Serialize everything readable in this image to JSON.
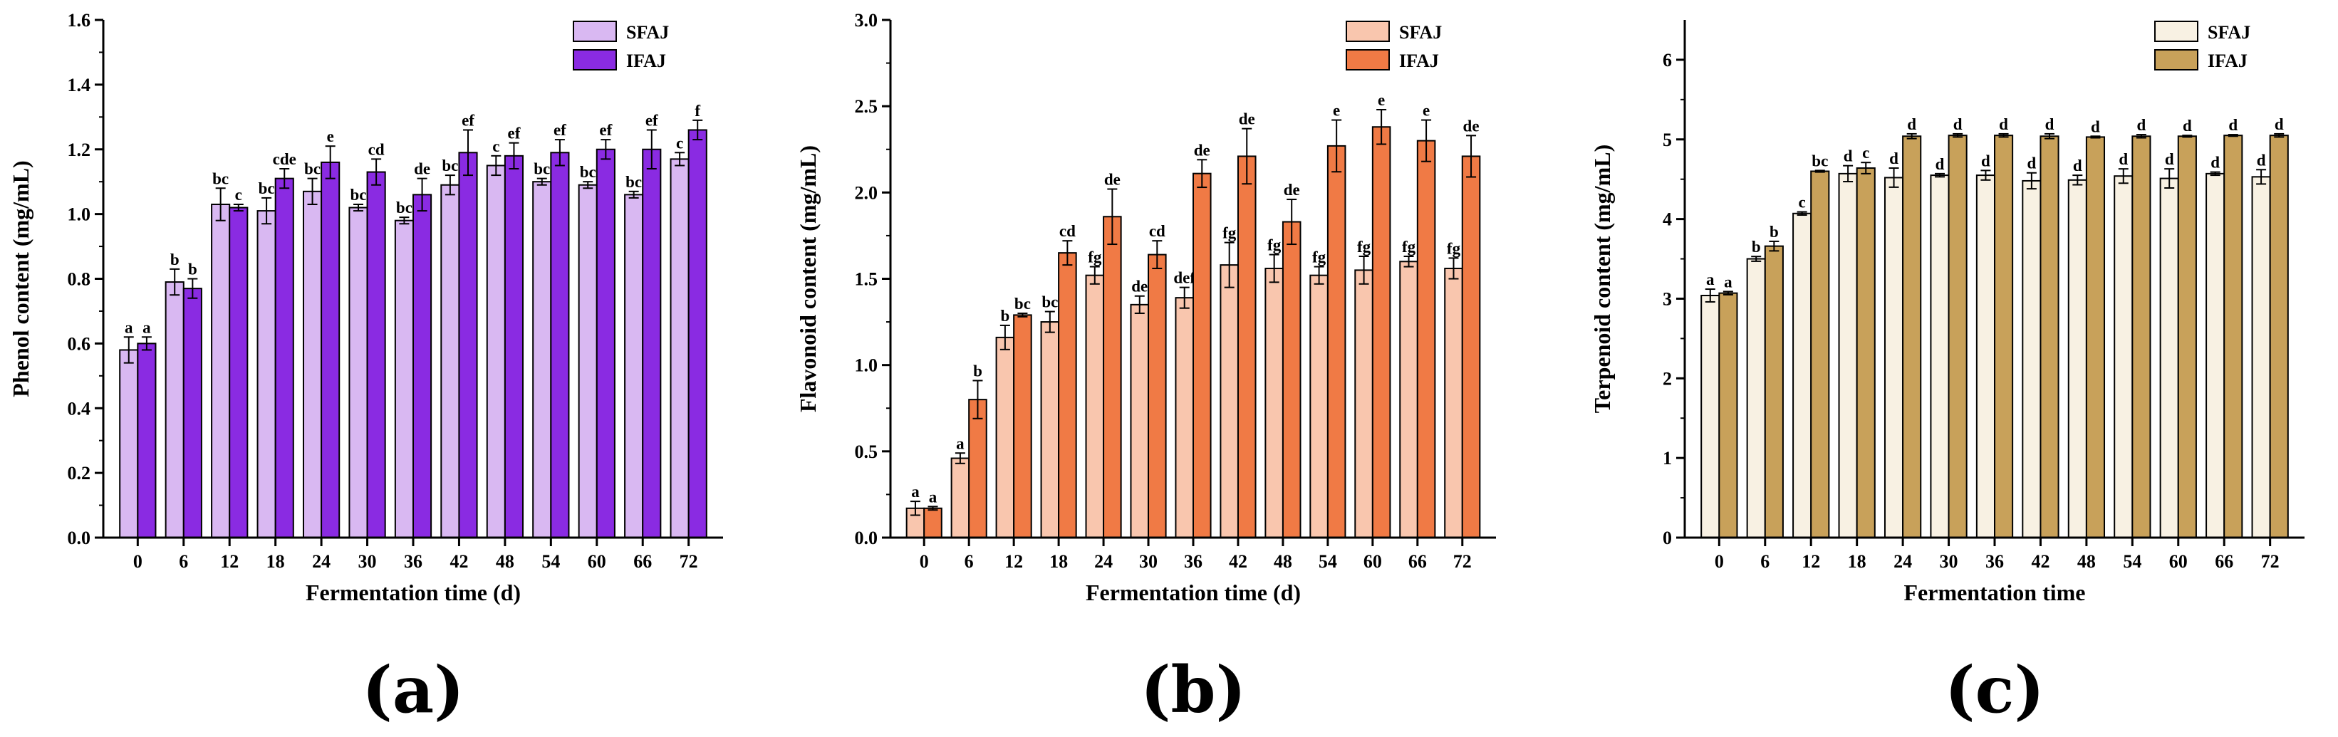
{
  "chart_data": [
    {
      "type": "bar",
      "panel_label": "(a)",
      "categories": [
        "0",
        "6",
        "12",
        "18",
        "24",
        "30",
        "36",
        "42",
        "48",
        "54",
        "60",
        "66",
        "72"
      ],
      "xlabel": "Fermentation time (d)",
      "ylabel": "Phenol content (mg/mL)",
      "ylim": [
        0,
        1.6
      ],
      "yticks": [
        "0.0",
        "0.2",
        "0.4",
        "0.6",
        "0.8",
        "1.0",
        "1.2",
        "1.4",
        "1.6"
      ],
      "legend_position": "top-right",
      "series": [
        {
          "name": "SFAJ",
          "color": "#D9B8F2",
          "values": [
            0.58,
            0.79,
            1.03,
            1.01,
            1.07,
            1.02,
            0.98,
            1.09,
            1.15,
            1.1,
            1.09,
            1.06,
            1.17
          ],
          "errors": [
            0.04,
            0.04,
            0.05,
            0.04,
            0.04,
            0.01,
            0.01,
            0.03,
            0.03,
            0.01,
            0.01,
            0.01,
            0.02
          ],
          "labels": [
            "a",
            "b",
            "bc",
            "bc",
            "bc",
            "bc",
            "bc",
            "bc",
            "c",
            "bc",
            "bc",
            "bc",
            "c"
          ]
        },
        {
          "name": "IFAJ",
          "color": "#8A2BE2",
          "values": [
            0.6,
            0.77,
            1.02,
            1.11,
            1.16,
            1.13,
            1.06,
            1.19,
            1.18,
            1.19,
            1.2,
            1.2,
            1.26
          ],
          "errors": [
            0.02,
            0.03,
            0.01,
            0.03,
            0.05,
            0.04,
            0.05,
            0.07,
            0.04,
            0.04,
            0.03,
            0.06,
            0.03
          ],
          "labels": [
            "a",
            "b",
            "c",
            "cde",
            "e",
            "cd",
            "de",
            "ef",
            "ef",
            "ef",
            "ef",
            "ef",
            "f"
          ]
        }
      ]
    },
    {
      "type": "bar",
      "panel_label": "(b)",
      "categories": [
        "0",
        "6",
        "12",
        "18",
        "24",
        "30",
        "36",
        "42",
        "48",
        "54",
        "60",
        "66",
        "72"
      ],
      "xlabel": "Fermentation time (d)",
      "ylabel": "Flavonoid content (mg/mL)",
      "ylim": [
        0,
        3.0
      ],
      "yticks": [
        "0.0",
        "0.5",
        "1.0",
        "1.5",
        "2.0",
        "2.5",
        "3.0"
      ],
      "legend_position": "top-right",
      "series": [
        {
          "name": "SFAJ",
          "color": "#F9C6AE",
          "values": [
            0.17,
            0.46,
            1.16,
            1.25,
            1.52,
            1.35,
            1.39,
            1.58,
            1.56,
            1.52,
            1.55,
            1.6,
            1.56
          ],
          "errors": [
            0.04,
            0.03,
            0.07,
            0.06,
            0.05,
            0.05,
            0.06,
            0.13,
            0.08,
            0.05,
            0.08,
            0.03,
            0.06
          ],
          "labels": [
            "a",
            "a",
            "b",
            "bc",
            "fg",
            "de",
            "def",
            "fg",
            "fg",
            "fg",
            "fg",
            "fg",
            "fg"
          ]
        },
        {
          "name": "IFAJ",
          "color": "#F07A45",
          "values": [
            0.17,
            0.8,
            1.29,
            1.65,
            1.86,
            1.64,
            2.11,
            2.21,
            1.83,
            2.27,
            2.38,
            2.3,
            2.21
          ],
          "errors": [
            0.01,
            0.11,
            0.01,
            0.07,
            0.16,
            0.08,
            0.08,
            0.16,
            0.13,
            0.15,
            0.1,
            0.12,
            0.12
          ],
          "labels": [
            "a",
            "b",
            "bc",
            "cd",
            "de",
            "cd",
            "de",
            "de",
            "de",
            "e",
            "e",
            "e",
            "de"
          ]
        }
      ]
    },
    {
      "type": "bar",
      "panel_label": "(c)",
      "categories": [
        "0",
        "6",
        "12",
        "18",
        "24",
        "30",
        "36",
        "42",
        "48",
        "54",
        "60",
        "66",
        "72"
      ],
      "xlabel": "Fermentation time",
      "ylabel": "Terpenoid content (mg/mL)",
      "ylim": [
        0,
        6.5
      ],
      "yticks": [
        "0",
        "1",
        "2",
        "3",
        "4",
        "5",
        "6"
      ],
      "legend_position": "top-right",
      "series": [
        {
          "name": "SFAJ",
          "color": "#F8F1E3",
          "values": [
            3.04,
            3.5,
            4.07,
            4.57,
            4.52,
            4.55,
            4.55,
            4.48,
            4.49,
            4.54,
            4.51,
            4.57,
            4.53
          ],
          "errors": [
            0.08,
            0.03,
            0.02,
            0.1,
            0.12,
            0.02,
            0.06,
            0.1,
            0.06,
            0.09,
            0.12,
            0.02,
            0.09
          ],
          "labels": [
            "a",
            "b",
            "c",
            "d",
            "d",
            "d",
            "d",
            "d",
            "d",
            "d",
            "d",
            "d",
            "d"
          ]
        },
        {
          "name": "IFAJ",
          "color": "#C8A15A",
          "values": [
            3.07,
            3.66,
            4.6,
            4.64,
            5.04,
            5.05,
            5.05,
            5.04,
            5.03,
            5.04,
            5.04,
            5.05,
            5.05
          ],
          "errors": [
            0.02,
            0.06,
            0.01,
            0.07,
            0.03,
            0.02,
            0.02,
            0.03,
            0.01,
            0.02,
            0.01,
            0.01,
            0.02
          ],
          "labels": [
            "a",
            "b",
            "bc",
            "c",
            "d",
            "d",
            "d",
            "d",
            "d",
            "d",
            "d",
            "d",
            "d"
          ]
        }
      ]
    }
  ]
}
